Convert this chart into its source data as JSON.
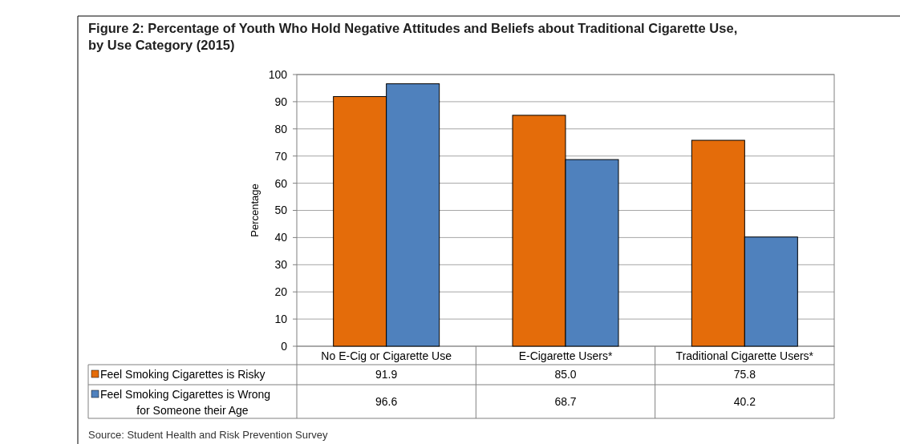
{
  "chart_data": {
    "type": "bar",
    "title": "Figure 2: Percentage of Youth Who Hold Negative Attitudes and Beliefs about Traditional Cigarette Use, by Use Category (2015)",
    "ylabel": "Percentage",
    "categories": [
      "No E-Cig or Cigarette Use",
      "E-Cigarette Users*",
      "Traditional Cigarette Users*"
    ],
    "series": [
      {
        "name": "Feel Smoking Cigarettes is Risky",
        "color": "#e46c0a",
        "values": [
          91.9,
          85.0,
          75.8
        ],
        "value_labels": [
          "91.9",
          "85.0",
          "75.8"
        ]
      },
      {
        "name": "Feel Smoking Cigarettes is Wrong for Someone their Age",
        "color": "#4f81bd",
        "values": [
          96.6,
          68.7,
          40.2
        ],
        "value_labels": [
          "96.6",
          "68.7",
          "40.2"
        ]
      }
    ],
    "ylim": [
      0,
      100
    ],
    "yticks": [
      0,
      10,
      20,
      30,
      40,
      50,
      60,
      70,
      80,
      90,
      100
    ],
    "grid": "y",
    "legend": "bottom",
    "annotations": [
      "Source: Student Health and Risk Prevention Survey"
    ]
  }
}
